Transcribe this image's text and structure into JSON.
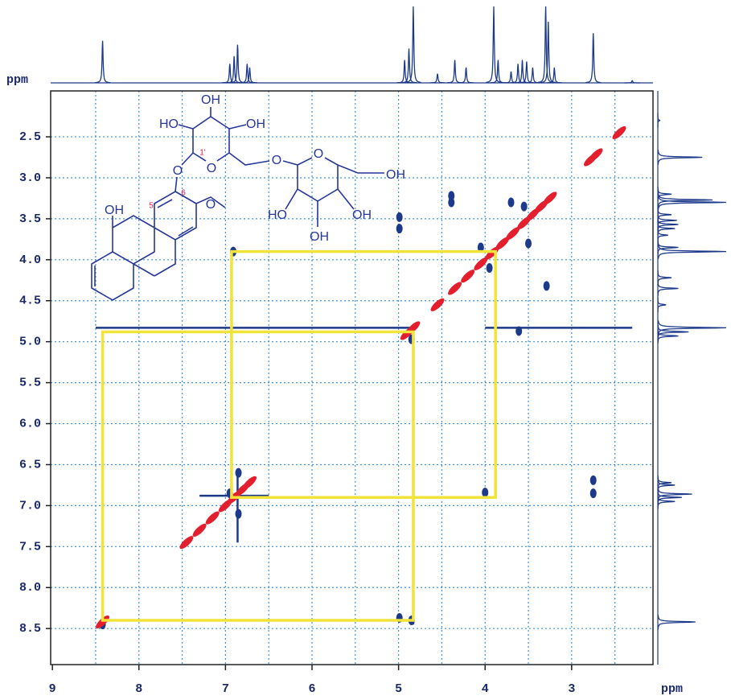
{
  "chart_data": {
    "type": "nmr2d",
    "x_label": "ppm",
    "y_label": "ppm",
    "xlim": [
      9.02,
      2.06
    ],
    "ylim": [
      1.94,
      8.94
    ],
    "xticks": [
      9,
      8,
      7,
      6,
      5,
      4,
      3
    ],
    "xgrid": [
      8.5,
      8,
      7.5,
      7,
      6.5,
      6,
      5.5,
      5,
      4.5,
      4,
      3.5,
      3,
      2.5
    ],
    "yticks": [
      2.5,
      {
        "value": 3,
        "label": "3.0"
      },
      3.5,
      {
        "value": 4,
        "label": "4.0"
      },
      4.5,
      {
        "value": 5,
        "label": "5.0"
      },
      5.5,
      {
        "value": 6,
        "label": "6.0"
      },
      6.5,
      {
        "value": 7,
        "label": "7.0"
      },
      7.5,
      {
        "value": 8,
        "label": "8.0"
      },
      8.5
    ],
    "grid": true,
    "cross_peak_color": "#1d3a8a",
    "diagonal_color": "#e41f2d",
    "connection_color": "#f2e33a",
    "projection": {
      "ppm": [
        8.42,
        6.95,
        6.9,
        6.86,
        6.75,
        6.72,
        4.93,
        4.88,
        4.83,
        4.55,
        4.35,
        4.22,
        3.9,
        3.85,
        3.7,
        3.62,
        3.57,
        3.52,
        3.45,
        3.3,
        3.27,
        3.2,
        2.75,
        2.3
      ],
      "height": [
        0.55,
        0.25,
        0.35,
        0.5,
        0.25,
        0.2,
        0.3,
        0.45,
        1.0,
        0.12,
        0.3,
        0.2,
        1.0,
        0.3,
        0.15,
        0.25,
        0.3,
        0.28,
        0.2,
        1.0,
        0.8,
        0.2,
        0.65,
        0.03
      ]
    },
    "diagonal_peaks": [
      8.42,
      7.45,
      7.3,
      7.15,
      7.0,
      6.9,
      6.8,
      6.72,
      4.9,
      4.83,
      4.55,
      4.35,
      4.2,
      4.05,
      3.92,
      3.8,
      3.68,
      3.55,
      3.45,
      3.35,
      3.25,
      2.78,
      2.72,
      2.45
    ],
    "cross_peaks": {
      "x": [
        4.99,
        4.99,
        4.39,
        4.39,
        3.29,
        3.61,
        2.75,
        2.75,
        4.99,
        4.85,
        4.0,
        6.91,
        4.05,
        3.95,
        3.7,
        3.5,
        8.42,
        4.85,
        3.55,
        6.85,
        6.85,
        6.95
      ],
      "y": [
        3.48,
        3.62,
        3.22,
        3.3,
        4.32,
        4.87,
        6.69,
        6.85,
        8.37,
        4.97,
        6.84,
        3.9,
        3.85,
        4.1,
        3.3,
        3.8,
        8.45,
        8.4,
        3.35,
        6.6,
        7.1,
        6.85
      ]
    },
    "streaks": [
      {
        "x": [
          8.5,
          4.86
        ],
        "y": [
          4.83,
          4.83
        ]
      },
      {
        "x": [
          4.83,
          4.83
        ],
        "y": [
          4.8,
          8.45
        ]
      },
      {
        "x": [
          4.0,
          2.3
        ],
        "y": [
          4.83,
          4.83
        ]
      },
      {
        "x": [
          7.3,
          6.5
        ],
        "y": [
          6.88,
          6.88
        ]
      },
      {
        "x": [
          6.86,
          6.86
        ],
        "y": [
          6.6,
          7.45
        ]
      }
    ],
    "connections": [
      {
        "x": [
          8.42,
          4.83
        ],
        "y": [
          4.88,
          8.4
        ]
      },
      {
        "x": [
          6.93,
          3.88
        ],
        "y": [
          3.9,
          6.9
        ]
      }
    ],
    "structure": {
      "labels": [
        "OH",
        "HO",
        "OH",
        "1'",
        "OH",
        "HO",
        "OH",
        "OH",
        "OH",
        "5",
        "6",
        "O",
        "O",
        "O",
        "O",
        "O"
      ]
    }
  }
}
